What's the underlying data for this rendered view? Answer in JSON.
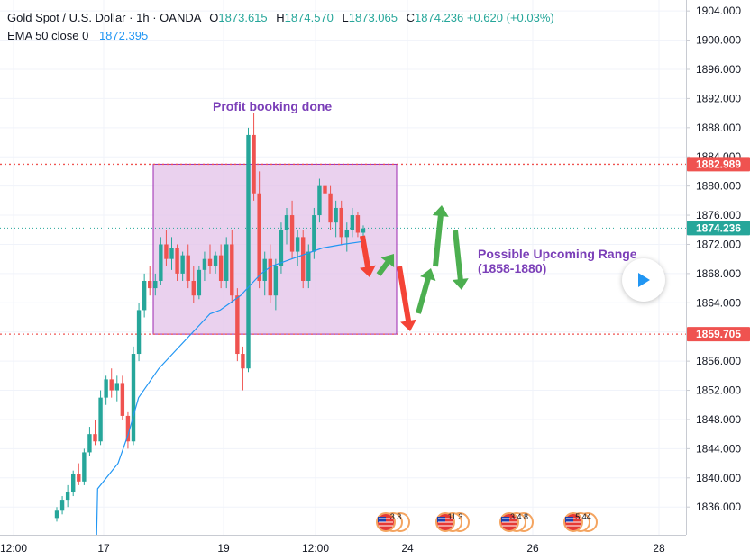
{
  "legend": {
    "symbol": "Gold Spot / U.S. Dollar",
    "sep": "·",
    "interval": "1h",
    "source": "OANDA",
    "o_label": "O",
    "o_value": "1873.615",
    "h_label": "H",
    "h_value": "1874.570",
    "l_label": "L",
    "l_value": "1873.065",
    "c_label": "C",
    "c_value": "1874.236",
    "change": "+0.620 (+0.03%)",
    "ema_label": "EMA 50 close 0",
    "ema_value": "1872.395"
  },
  "colors": {
    "up": "#26a69a",
    "down": "#ef5350",
    "ema": "#2196f3",
    "range_fill": "#e1bee7",
    "range_border": "#9c27b0",
    "annotation": "#7b3fb8",
    "arrow_up": "#4caf50",
    "arrow_down": "#f44336"
  },
  "annotations": {
    "profit": "Profit booking done",
    "range_line1": "Possible Upcoming Range",
    "range_line2": "(1858-1880)"
  },
  "price_tags": {
    "upper": "1882.989",
    "current": "1874.236",
    "lower": "1859.705"
  },
  "event_icons": [
    "3 3",
    "11 3",
    "3 4 8",
    "5 44"
  ],
  "chart_data": {
    "type": "candlestick",
    "title": "Gold Spot / U.S. Dollar",
    "interval": "1h",
    "y_ticks": [
      1836,
      1840,
      1844,
      1848,
      1852,
      1856,
      1860,
      1864,
      1868,
      1872,
      1876,
      1880,
      1884,
      1888,
      1892,
      1896,
      1900,
      1904
    ],
    "y_tick_labels": [
      "1836.000",
      "1840.000",
      "1844.000",
      "1848.000",
      "1852.000",
      "1856.000",
      "1860.000",
      "1864.000",
      "1868.000",
      "1872.000",
      "1876.000",
      "1880.000",
      "1884.000",
      "1888.000",
      "1892.000",
      "1896.000",
      "1900.000",
      "1904.000"
    ],
    "ylim": [
      1832.2,
      1905.5
    ],
    "x_tick_labels": [
      "12:00",
      "17",
      "19",
      "12:00",
      "24",
      "26",
      "28"
    ],
    "horizontal_levels": [
      1882.989,
      1859.705
    ],
    "last_price": 1874.236,
    "range_box": {
      "high": 1882.989,
      "low": 1859.705
    },
    "ema_series": [
      [
        0,
        1830.0
      ],
      [
        2,
        1834.5
      ],
      [
        4,
        1838.5
      ],
      [
        6,
        1842.0
      ],
      [
        7,
        1846.0
      ],
      [
        8,
        1851.0
      ],
      [
        10,
        1855.0
      ],
      [
        12,
        1858.0
      ],
      [
        14,
        1861.0
      ],
      [
        15,
        1862.5
      ],
      [
        16,
        1863.0
      ],
      [
        17,
        1864.0
      ],
      [
        18,
        1865.0
      ],
      [
        19,
        1866.5
      ],
      [
        20,
        1868.0
      ],
      [
        21,
        1869.0
      ],
      [
        22,
        1869.5
      ],
      [
        24,
        1870.5
      ],
      [
        26,
        1871.5
      ],
      [
        28,
        1872.0
      ],
      [
        30,
        1872.4
      ]
    ],
    "candles_note": "approximate hourly candles read from chart",
    "candles": [
      [
        1834.5,
        1836.0,
        1834.0,
        1835.5
      ],
      [
        1835.5,
        1837.5,
        1835.0,
        1837.0
      ],
      [
        1837.0,
        1839.0,
        1836.0,
        1838.0
      ],
      [
        1838.0,
        1841.0,
        1837.5,
        1840.5
      ],
      [
        1840.5,
        1842.0,
        1839.0,
        1839.5
      ],
      [
        1839.5,
        1844.0,
        1839.0,
        1843.5
      ],
      [
        1843.5,
        1847.0,
        1843.0,
        1846.0
      ],
      [
        1846.0,
        1848.0,
        1844.5,
        1845.0
      ],
      [
        1845.0,
        1852.0,
        1844.5,
        1851.0
      ],
      [
        1851.0,
        1854.0,
        1850.0,
        1853.5
      ],
      [
        1853.5,
        1855.0,
        1851.0,
        1852.0
      ],
      [
        1852.0,
        1854.0,
        1850.5,
        1853.0
      ],
      [
        1853.0,
        1854.0,
        1848.0,
        1848.5
      ],
      [
        1848.5,
        1849.0,
        1844.0,
        1845.0
      ],
      [
        1845.0,
        1858.0,
        1844.5,
        1857.0
      ],
      [
        1857.0,
        1864.0,
        1856.0,
        1863.0
      ],
      [
        1863.0,
        1868.0,
        1862.0,
        1867.0
      ],
      [
        1867.0,
        1869.0,
        1865.0,
        1866.0
      ],
      [
        1866.0,
        1868.0,
        1865.0,
        1867.0
      ],
      [
        1867.0,
        1873.0,
        1866.5,
        1872.0
      ],
      [
        1872.0,
        1874.0,
        1869.0,
        1870.0
      ],
      [
        1870.0,
        1873.0,
        1868.5,
        1871.5
      ],
      [
        1871.5,
        1872.0,
        1867.0,
        1868.0
      ],
      [
        1868.0,
        1871.0,
        1867.0,
        1870.5
      ],
      [
        1870.5,
        1872.0,
        1866.0,
        1867.0
      ],
      [
        1867.0,
        1869.0,
        1864.0,
        1865.0
      ],
      [
        1865.0,
        1869.0,
        1864.5,
        1868.5
      ],
      [
        1868.5,
        1871.0,
        1867.0,
        1870.0
      ],
      [
        1870.0,
        1872.0,
        1868.0,
        1869.0
      ],
      [
        1869.0,
        1871.0,
        1868.0,
        1870.5
      ],
      [
        1870.5,
        1872.0,
        1866.0,
        1867.0
      ],
      [
        1867.0,
        1873.0,
        1866.0,
        1872.0
      ],
      [
        1872.0,
        1874.0,
        1864.0,
        1865.0
      ],
      [
        1865.0,
        1866.0,
        1856.0,
        1857.0
      ],
      [
        1857.0,
        1858.0,
        1852.0,
        1855.0
      ],
      [
        1855.0,
        1888.0,
        1854.5,
        1887.0
      ],
      [
        1887.0,
        1890.0,
        1878.0,
        1879.0
      ],
      [
        1879.0,
        1882.0,
        1866.0,
        1867.0
      ],
      [
        1867.0,
        1871.0,
        1865.0,
        1870.0
      ],
      [
        1870.0,
        1872.0,
        1864.0,
        1865.0
      ],
      [
        1865.0,
        1870.0,
        1863.0,
        1869.0
      ],
      [
        1869.0,
        1875.0,
        1868.0,
        1874.0
      ],
      [
        1874.0,
        1877.0,
        1872.0,
        1876.0
      ],
      [
        1876.0,
        1878.0,
        1870.0,
        1871.0
      ],
      [
        1871.0,
        1874.0,
        1869.0,
        1873.0
      ],
      [
        1873.0,
        1874.0,
        1866.0,
        1867.0
      ],
      [
        1867.0,
        1872.0,
        1866.0,
        1871.0
      ],
      [
        1871.0,
        1877.0,
        1870.0,
        1876.0
      ],
      [
        1876.0,
        1881.0,
        1875.0,
        1880.0
      ],
      [
        1880.0,
        1884.0,
        1878.0,
        1879.0
      ],
      [
        1879.0,
        1880.0,
        1874.0,
        1875.0
      ],
      [
        1875.0,
        1878.0,
        1873.0,
        1877.0
      ],
      [
        1877.0,
        1878.0,
        1872.0,
        1873.0
      ],
      [
        1873.0,
        1875.0,
        1871.0,
        1874.0
      ],
      [
        1874.0,
        1877.0,
        1873.0,
        1876.0
      ],
      [
        1876.0,
        1876.5,
        1873.0,
        1873.6
      ],
      [
        1873.6,
        1874.6,
        1873.1,
        1874.2
      ]
    ]
  }
}
